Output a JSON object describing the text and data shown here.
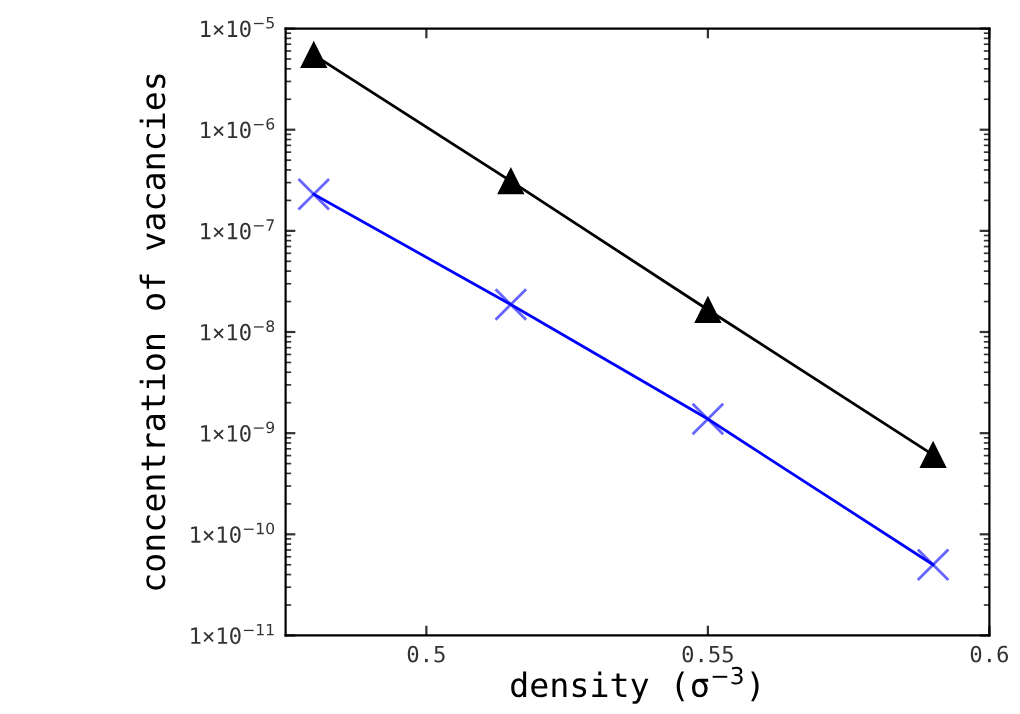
{
  "chart_data": {
    "type": "line",
    "xlabel": "density (σ$^{−3}$)",
    "ylabel": "concentration of vacancies",
    "x": [
      0.48,
      0.515,
      0.55,
      0.59
    ],
    "series": [
      {
        "color": "#000000",
        "marker": "triangle",
        "values": [
          5.5e-06,
          3.1e-07,
          1.66e-08,
          6.1e-10
        ]
      },
      {
        "color": "#0000ff",
        "marker": "cross",
        "values": [
          2.3e-07,
          1.87e-08,
          1.38e-09,
          5e-11
        ]
      }
    ],
    "log": "y",
    "xlim": [
      0.475,
      0.6
    ],
    "ylim": [
      1e-11,
      1e-05
    ],
    "xticks": [
      0.5,
      0.55,
      0.6
    ],
    "yticks": [
      {
        "value": 1e-11,
        "label": "1×10$^{−11}$"
      },
      {
        "value": 1e-10,
        "label": "1×10$^{−10}$"
      },
      {
        "value": 1e-09,
        "label": "1×10$^{−9}$"
      },
      {
        "value": 1e-08,
        "label": "1×10$^{−8}$"
      },
      {
        "value": 1e-07,
        "label": "1×10$^{−7}$"
      },
      {
        "value": 1e-06,
        "label": "1×10$^{−6}$"
      },
      {
        "value": 1e-05,
        "label": "1×10$^{−5}$"
      }
    ],
    "grid": false,
    "legend": false
  }
}
